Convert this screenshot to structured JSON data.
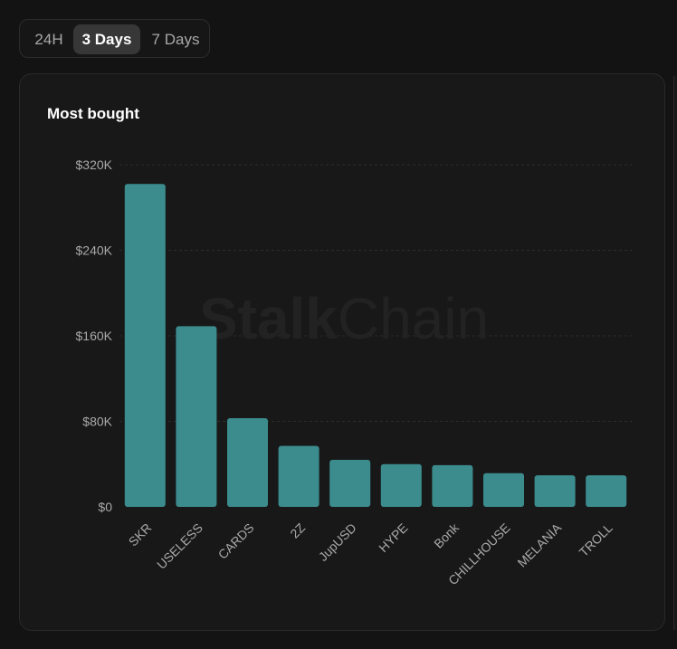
{
  "tabs": [
    {
      "label": "24H",
      "active": false
    },
    {
      "label": "3 Days",
      "active": true
    },
    {
      "label": "7 Days",
      "active": false
    }
  ],
  "watermark": {
    "part1": "Stalk",
    "part2": "Chain"
  },
  "colors": {
    "bar": "#3c8c8e",
    "grid": "#2d2d2d",
    "tick": "#a9a9a9",
    "activeTab": "#373737"
  },
  "chart_data": {
    "type": "bar",
    "title": "Most bought",
    "categories": [
      "SKR",
      "USELESS",
      "CARDS",
      "2Z",
      "JupUSD",
      "HYPE",
      "Bonk",
      "CHILLHOUSE",
      "MELANIA",
      "TROLL"
    ],
    "values": [
      302000,
      169000,
      83000,
      57000,
      44000,
      40000,
      39000,
      31500,
      29500,
      29500
    ],
    "ylim": [
      0,
      320000
    ],
    "yticks": [
      0,
      80000,
      160000,
      240000,
      320000
    ],
    "ytick_labels": [
      "$0",
      "$80K",
      "$160K",
      "$240K",
      "$320K"
    ],
    "xlabel": "",
    "ylabel": "",
    "grid": true
  }
}
